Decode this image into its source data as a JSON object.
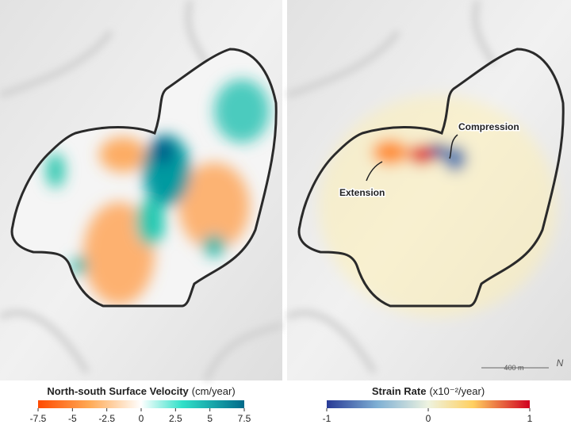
{
  "panels": [
    {
      "legend": {
        "title": "North-south Surface Velocity",
        "unit": "(cm/year)",
        "ticks": [
          -7.5,
          -5,
          -2.5,
          0,
          2.5,
          5,
          7.5
        ]
      }
    },
    {
      "legend": {
        "title": "Strain Rate",
        "unit": "(x10⁻²/year)",
        "ticks": [
          -1,
          0,
          1
        ]
      },
      "annotations": [
        "Compression",
        "Extension"
      ],
      "scale_bar": "400 m",
      "north": "N"
    }
  ]
}
